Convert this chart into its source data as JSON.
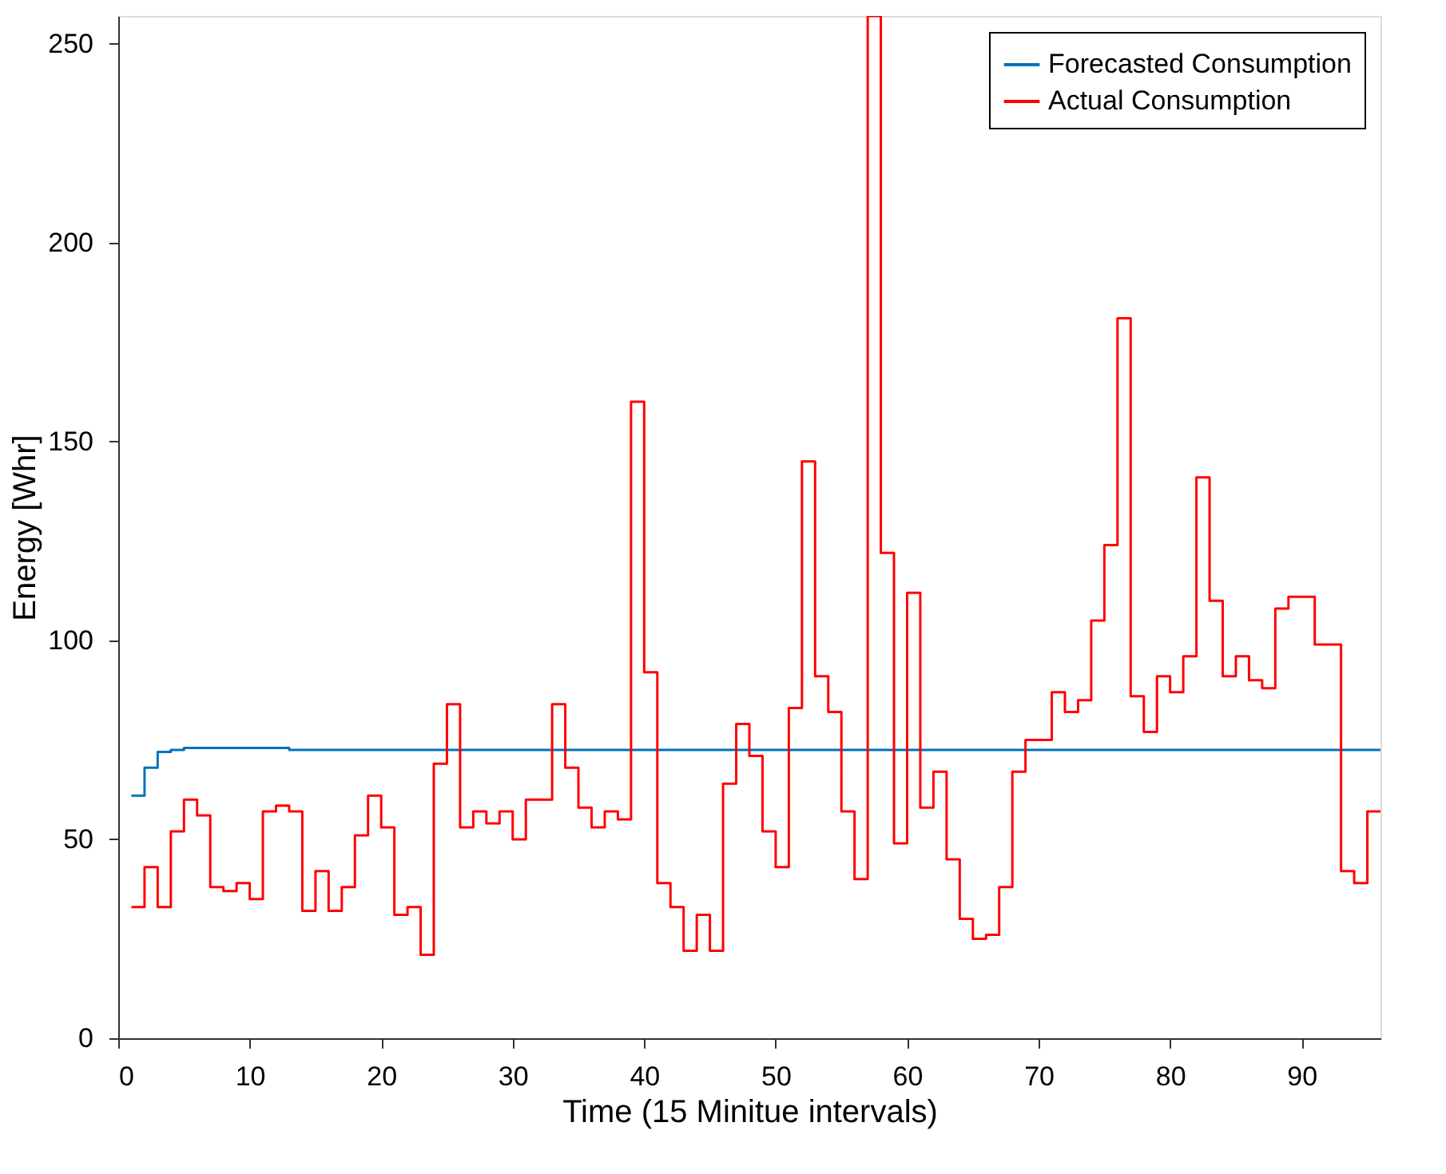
{
  "chart_data": {
    "type": "step",
    "xlabel": "Time (15 Minitue intervals)",
    "ylabel": "Energy [Whr]",
    "xlim": [
      0,
      96
    ],
    "xticks": [
      0,
      10,
      20,
      30,
      40,
      50,
      60,
      70,
      80,
      90
    ],
    "ylim": [
      0,
      257
    ],
    "yticks": [
      0,
      50,
      100,
      150,
      200,
      250
    ],
    "grid": false,
    "legend": "top right",
    "marker": "none",
    "line_style": "solid",
    "series": [
      {
        "name": "Forecasted Consumption",
        "color": "#0072bd",
        "x": [
          1,
          2,
          3,
          4,
          5,
          13,
          96
        ],
        "values": [
          61,
          68,
          72,
          72.5,
          73,
          72.5,
          72.5
        ]
      },
      {
        "name": "Actual Consumption",
        "color": "#ff0000",
        "x": [
          1,
          2,
          3,
          4,
          5,
          6,
          7,
          8,
          9,
          10,
          11,
          12,
          13,
          14,
          15,
          16,
          17,
          18,
          19,
          20,
          21,
          22,
          23,
          24,
          25,
          26,
          27,
          28,
          29,
          30,
          31,
          32,
          33,
          34,
          35,
          36,
          37,
          38,
          39,
          40,
          41,
          42,
          43,
          44,
          45,
          46,
          47,
          48,
          49,
          50,
          51,
          52,
          53,
          54,
          55,
          56,
          57,
          58,
          59,
          60,
          61,
          62,
          63,
          64,
          65,
          66,
          67,
          68,
          69,
          70,
          71,
          72,
          73,
          74,
          75,
          76,
          77,
          78,
          79,
          80,
          81,
          82,
          83,
          84,
          85,
          86,
          87,
          88,
          89,
          90,
          91,
          92,
          93,
          94,
          95,
          96
        ],
        "values": [
          33,
          43,
          33,
          52,
          60,
          56,
          38,
          37,
          39,
          35,
          57,
          58.5,
          57,
          32,
          42,
          32,
          38,
          51,
          61,
          53,
          31,
          33,
          21,
          69,
          84,
          53,
          57,
          54,
          57,
          50,
          60,
          60,
          84,
          68,
          58,
          53,
          57,
          55,
          160,
          92,
          39,
          33,
          22,
          31,
          22,
          64,
          79,
          71,
          52,
          43,
          83,
          145,
          91,
          82,
          57,
          40,
          257,
          122,
          49,
          112,
          58,
          67,
          45,
          30,
          25,
          26,
          38,
          67,
          75,
          75,
          87,
          82,
          85,
          105,
          124,
          181,
          86,
          77,
          91,
          87,
          96,
          141,
          110,
          91,
          96,
          90,
          88,
          108,
          111,
          111,
          99,
          99,
          42,
          39,
          57,
          57
        ]
      }
    ]
  }
}
